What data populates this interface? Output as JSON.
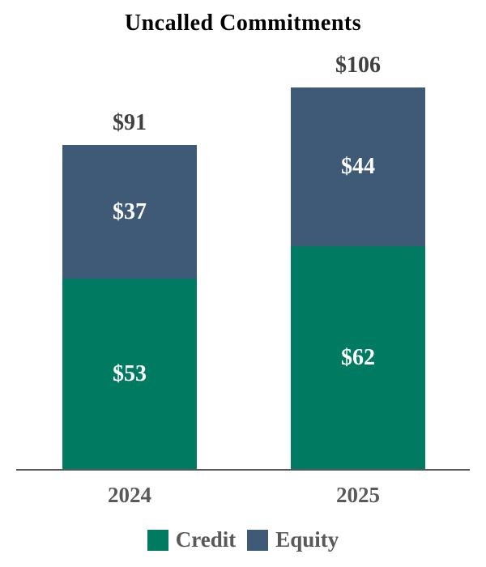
{
  "chart_data": {
    "type": "bar",
    "stacked": true,
    "title": "Uncalled Commitments",
    "categories": [
      "2024",
      "2025"
    ],
    "series": [
      {
        "name": "Credit",
        "color": "#007A61",
        "values": [
          53,
          62
        ],
        "labels": [
          "$53",
          "$62"
        ]
      },
      {
        "name": "Equity",
        "color": "#3E5A76",
        "values": [
          37,
          44
        ],
        "labels": [
          "$37",
          "$44"
        ]
      }
    ],
    "totals": [
      91,
      106
    ],
    "total_labels": [
      "$91",
      "$106"
    ],
    "legend_position": "bottom",
    "grid": false,
    "y_axis_visible": false,
    "x_axis_line_color": "#595959",
    "category_label_color": "#595959",
    "total_label_color": "#404040",
    "segment_label_color": "#FFFFFF",
    "title_color": "#000000",
    "background_color": "#FFFFFF"
  }
}
